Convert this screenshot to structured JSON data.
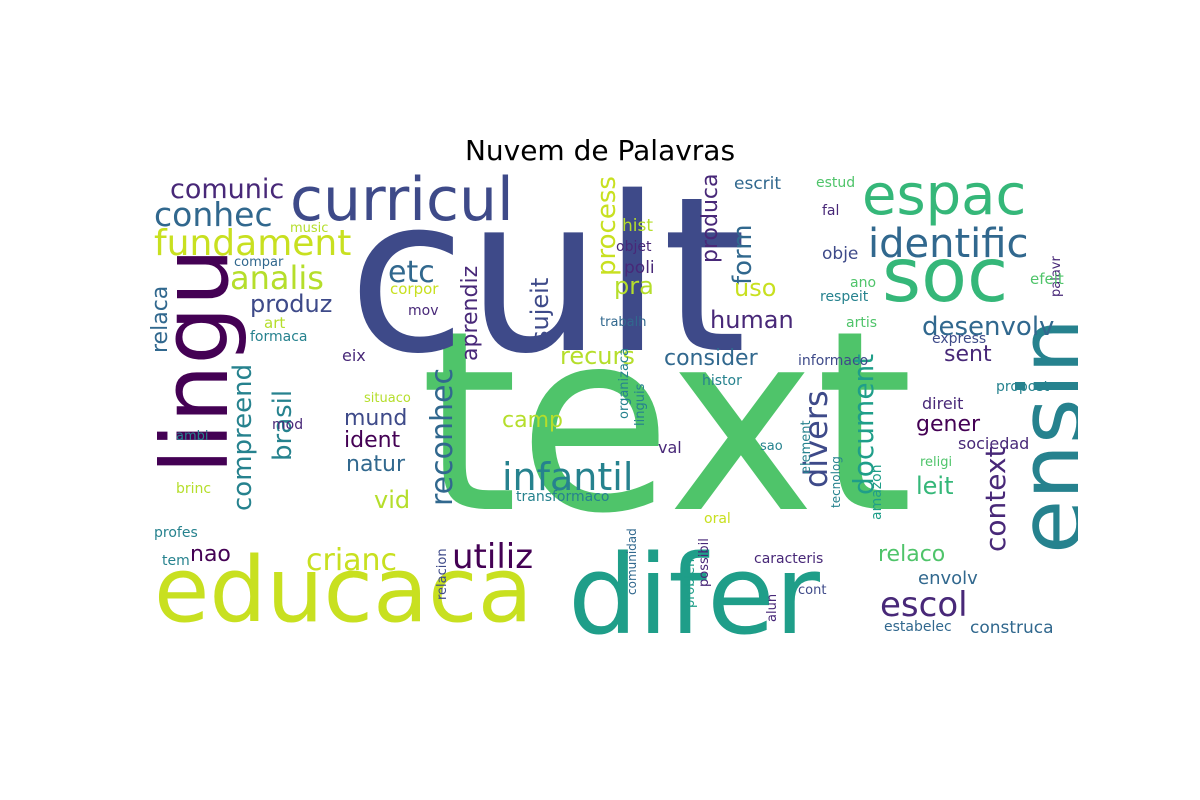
{
  "title": "Nuvem de Palavras",
  "palette": {
    "dark_purple": "#440154",
    "purple": "#482878",
    "indigo": "#3e4a89",
    "blue": "#31688e",
    "teal": "#26828e",
    "green_teal": "#1f9e89",
    "green": "#35b779",
    "bright_green": "#4fc46a",
    "lime": "#b5de2b",
    "yellow_green": "#c8e020"
  },
  "words": [
    {
      "text": "text",
      "color": "#4fc46a"
    },
    {
      "text": "cult",
      "color": "#3e4a89"
    },
    {
      "text": "educaca",
      "color": "#c8e020"
    },
    {
      "text": "difer",
      "color": "#1f9e89"
    },
    {
      "text": "lingu",
      "color": "#440154"
    },
    {
      "text": "ensin",
      "color": "#26828e"
    },
    {
      "text": "soc",
      "color": "#35b779"
    },
    {
      "text": "curricul",
      "color": "#3e4a89"
    },
    {
      "text": "espac",
      "color": "#35b779"
    },
    {
      "text": "identific",
      "color": "#31688e"
    },
    {
      "text": "fundament",
      "color": "#c8e020"
    },
    {
      "text": "conhec",
      "color": "#31688e"
    },
    {
      "text": "comunic",
      "color": "#482878"
    },
    {
      "text": "analis",
      "color": "#b5de2b"
    },
    {
      "text": "infantil",
      "color": "#26828e"
    },
    {
      "text": "etc",
      "color": "#31688e"
    },
    {
      "text": "utiliz",
      "color": "#440154"
    },
    {
      "text": "escol",
      "color": "#482878"
    },
    {
      "text": "crianc",
      "color": "#c8e020"
    },
    {
      "text": "reconhec",
      "color": "#31688e"
    },
    {
      "text": "desenvolv",
      "color": "#31688e"
    },
    {
      "text": "compreend",
      "color": "#26828e"
    },
    {
      "text": "brasil",
      "color": "#26828e"
    },
    {
      "text": "divers",
      "color": "#3e4a89"
    },
    {
      "text": "document",
      "color": "#1f9e89"
    },
    {
      "text": "context",
      "color": "#482878"
    },
    {
      "text": "produz",
      "color": "#3e4a89"
    },
    {
      "text": "process",
      "color": "#c8e020"
    },
    {
      "text": "produca",
      "color": "#482878"
    },
    {
      "text": "form",
      "color": "#31688e"
    },
    {
      "text": "aprendiz",
      "color": "#482878"
    },
    {
      "text": "sujeit",
      "color": "#3e4a89"
    },
    {
      "text": "relaca",
      "color": "#31688e"
    },
    {
      "text": "recurs",
      "color": "#b5de2b"
    },
    {
      "text": "consider",
      "color": "#31688e"
    },
    {
      "text": "human",
      "color": "#482878"
    },
    {
      "text": "uso",
      "color": "#c8e020"
    },
    {
      "text": "pra",
      "color": "#b5de2b"
    },
    {
      "text": "sent",
      "color": "#482878"
    },
    {
      "text": "gener",
      "color": "#440154"
    },
    {
      "text": "leit",
      "color": "#35b779"
    },
    {
      "text": "relaco",
      "color": "#4fc46a"
    },
    {
      "text": "mund",
      "color": "#3e4a89"
    },
    {
      "text": "ident",
      "color": "#440154"
    },
    {
      "text": "natur",
      "color": "#31688e"
    },
    {
      "text": "camp",
      "color": "#b5de2b"
    },
    {
      "text": "vid",
      "color": "#b5de2b"
    },
    {
      "text": "nao",
      "color": "#440154"
    },
    {
      "text": "envolv",
      "color": "#31688e"
    },
    {
      "text": "construca",
      "color": "#31688e"
    },
    {
      "text": "escrit",
      "color": "#31688e"
    },
    {
      "text": "estud",
      "color": "#4fc46a"
    },
    {
      "text": "fal",
      "color": "#482878"
    },
    {
      "text": "palavr",
      "color": "#482878"
    },
    {
      "text": "hist",
      "color": "#b5de2b"
    },
    {
      "text": "objet",
      "color": "#482878"
    },
    {
      "text": "music",
      "color": "#b5de2b"
    },
    {
      "text": "compar",
      "color": "#31688e"
    },
    {
      "text": "poli",
      "color": "#482878"
    },
    {
      "text": "obje",
      "color": "#3e4a89"
    },
    {
      "text": "corpor",
      "color": "#c8e020"
    },
    {
      "text": "ano",
      "color": "#4fc46a"
    },
    {
      "text": "efeit",
      "color": "#4fc46a"
    },
    {
      "text": "respeit",
      "color": "#26828e"
    },
    {
      "text": "art",
      "color": "#b5de2b"
    },
    {
      "text": "mov",
      "color": "#482878"
    },
    {
      "text": "trabalh",
      "color": "#31688e"
    },
    {
      "text": "artis",
      "color": "#4fc46a"
    },
    {
      "text": "formaca",
      "color": "#26828e"
    },
    {
      "text": "express",
      "color": "#3e4a89"
    },
    {
      "text": "eix",
      "color": "#482878"
    },
    {
      "text": "informaco",
      "color": "#3e4a89"
    },
    {
      "text": "histor",
      "color": "#26828e"
    },
    {
      "text": "propost",
      "color": "#26828e"
    },
    {
      "text": "situaco",
      "color": "#b5de2b"
    },
    {
      "text": "direit",
      "color": "#482878"
    },
    {
      "text": "mod",
      "color": "#482878"
    },
    {
      "text": "organizaca",
      "color": "#26828e"
    },
    {
      "text": "linguis",
      "color": "#26828e"
    },
    {
      "text": "element",
      "color": "#26828e"
    },
    {
      "text": "sociedad",
      "color": "#482878"
    },
    {
      "text": "ambi",
      "color": "#26828e"
    },
    {
      "text": "val",
      "color": "#482878"
    },
    {
      "text": "sao",
      "color": "#26828e"
    },
    {
      "text": "tecnolog",
      "color": "#26828e"
    },
    {
      "text": "amazon",
      "color": "#1f9e89"
    },
    {
      "text": "religi",
      "color": "#4fc46a"
    },
    {
      "text": "brinc",
      "color": "#b5de2b"
    },
    {
      "text": "transformaco",
      "color": "#26828e"
    },
    {
      "text": "oral",
      "color": "#c8e020"
    },
    {
      "text": "profes",
      "color": "#26828e"
    },
    {
      "text": "comunidad",
      "color": "#31688e"
    },
    {
      "text": "possibil",
      "color": "#482878"
    },
    {
      "text": "relacion",
      "color": "#3e4a89"
    },
    {
      "text": "tem",
      "color": "#26828e"
    },
    {
      "text": "problem",
      "color": "#1f9e89"
    },
    {
      "text": "caracteris",
      "color": "#482878"
    },
    {
      "text": "cont",
      "color": "#3e4a89"
    },
    {
      "text": "alun",
      "color": "#482878"
    },
    {
      "text": "estabelec",
      "color": "#31688e"
    }
  ]
}
